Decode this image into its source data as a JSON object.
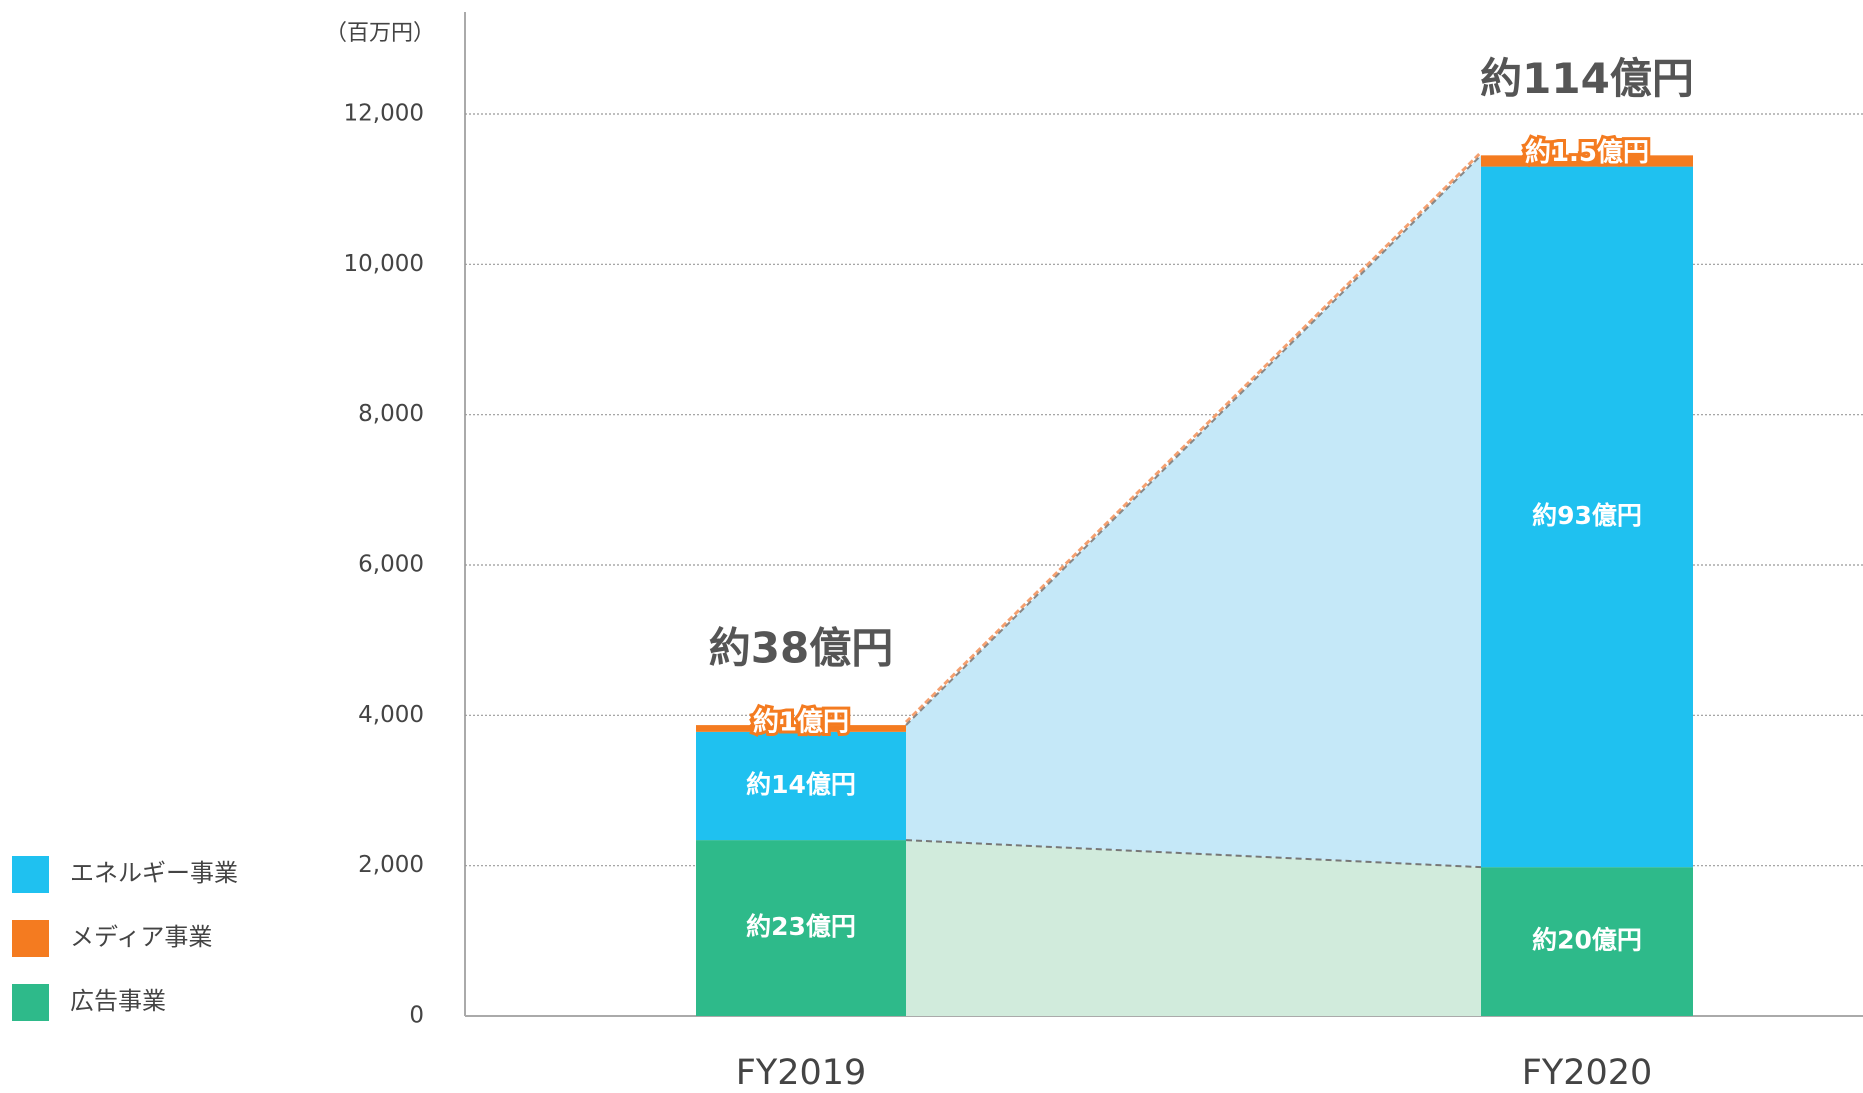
{
  "chart_data": {
    "type": "stacked_bar",
    "unit_label": "（百万円）",
    "categories": [
      "FY2019",
      "FY2020"
    ],
    "series": [
      {
        "name": "エネルギー事業",
        "color": "#1fc1f0",
        "values": [
          1440,
          9320
        ],
        "value_labels": [
          "約14億円",
          "約93億円"
        ]
      },
      {
        "name": "メディア事業",
        "color": "#f47b20",
        "values": [
          90,
          150
        ],
        "value_labels": [
          "約1億円",
          "約1.5億円"
        ]
      },
      {
        "name": "広告事業",
        "color": "#2eba8a",
        "values": [
          2340,
          1980
        ],
        "value_labels": [
          "約23億円",
          "約20億円"
        ]
      }
    ],
    "total_labels": [
      "約38億円",
      "約114億円"
    ],
    "ylim": [
      0,
      12000
    ],
    "yticks": [
      0,
      {
        "value": 2000,
        "label": "2,000"
      },
      {
        "value": 4000,
        "label": "4,000"
      },
      {
        "value": 6000,
        "label": "6,000"
      },
      {
        "value": 8000,
        "label": "8,000"
      },
      {
        "value": 10000,
        "label": "10,000"
      },
      {
        "value": 12000,
        "label": "12,000"
      }
    ],
    "grid": true
  }
}
